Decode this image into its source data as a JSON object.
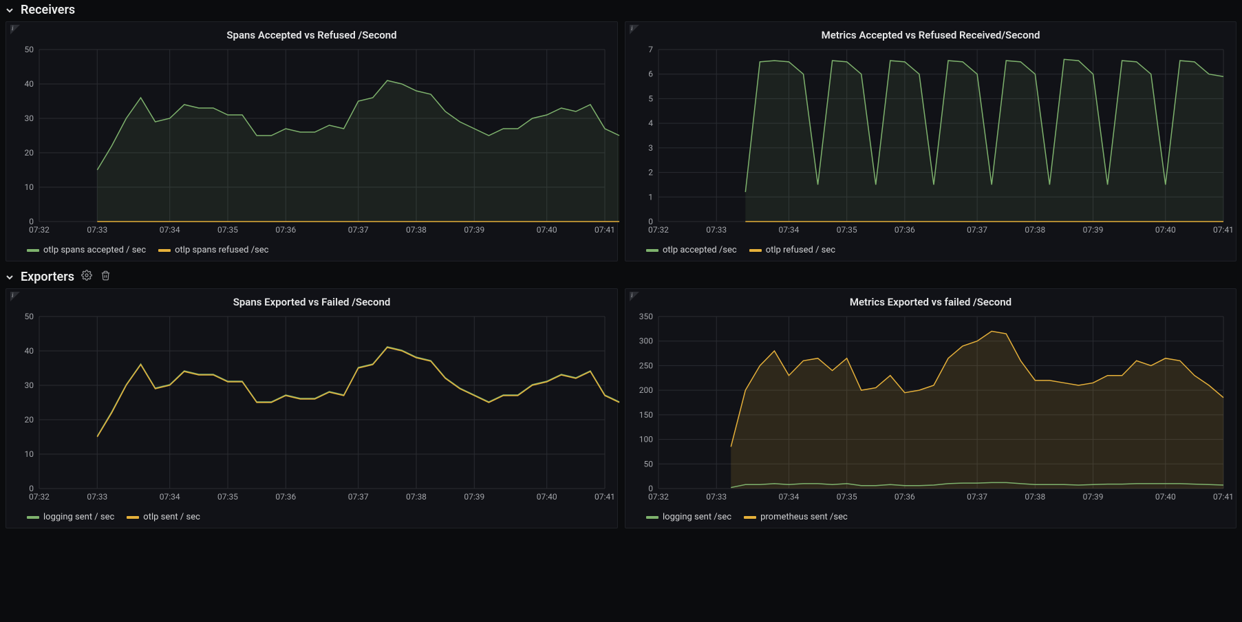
{
  "colors": {
    "green": "#7eb26d",
    "yellow": "#e5b03a",
    "grid": "#2a2c32",
    "axis": "#3a3c42",
    "tick_text": "#a3a5aa",
    "panel_bg": "#111217",
    "page_bg": "#0b0c0e"
  },
  "sections": [
    {
      "key": "receivers",
      "title": "Receivers",
      "show_icons": false
    },
    {
      "key": "exporters",
      "title": "Exporters",
      "show_icons": true
    }
  ],
  "x_ticks": [
    "07:32",
    "07:33",
    "07:34",
    "07:35",
    "07:36",
    "07:37",
    "07:38",
    "07:39",
    "07:40",
    "07:41"
  ],
  "panels": {
    "spans_accepted": {
      "title": "Spans Accepted vs Refused /Second",
      "type": "area-line",
      "x_count": 40,
      "y_min": 0,
      "y_max": 50,
      "y_step": 10,
      "legend": [
        {
          "label": "otlp spans accepted / sec",
          "color": "#7eb26d"
        },
        {
          "label": "otlp spans refused /sec",
          "color": "#e5b03a"
        }
      ],
      "series": [
        {
          "color": "#7eb26d",
          "fill": true,
          "fill_opacity": 0.1,
          "start_index": 4,
          "values": [
            15,
            22,
            30,
            36,
            29,
            30,
            34,
            33,
            33,
            31,
            31,
            25,
            25,
            27,
            26,
            26,
            28,
            27,
            35,
            36,
            41,
            40,
            38,
            37,
            32,
            29,
            27,
            25,
            27,
            27,
            30,
            31,
            33,
            32,
            34,
            27,
            25
          ]
        },
        {
          "color": "#e5b03a",
          "fill": false,
          "start_index": 4,
          "values": [
            0,
            0,
            0,
            0,
            0,
            0,
            0,
            0,
            0,
            0,
            0,
            0,
            0,
            0,
            0,
            0,
            0,
            0,
            0,
            0,
            0,
            0,
            0,
            0,
            0,
            0,
            0,
            0,
            0,
            0,
            0,
            0,
            0,
            0,
            0,
            0,
            0
          ]
        }
      ]
    },
    "metrics_accepted": {
      "title": "Metrics Accepted vs Refused Received/Second",
      "type": "area-line",
      "x_count": 40,
      "y_min": 0,
      "y_max": 7,
      "y_step": 1,
      "legend": [
        {
          "label": "otlp accepted /sec",
          "color": "#7eb26d"
        },
        {
          "label": "otlp refused / sec",
          "color": "#e5b03a"
        }
      ],
      "series": [
        {
          "color": "#7eb26d",
          "fill": true,
          "fill_opacity": 0.1,
          "start_index": 6,
          "values": [
            1.2,
            6.5,
            6.55,
            6.5,
            6.0,
            1.5,
            6.55,
            6.5,
            6.0,
            1.5,
            6.55,
            6.5,
            6.0,
            1.5,
            6.55,
            6.5,
            6.0,
            1.5,
            6.55,
            6.5,
            6.0,
            1.5,
            6.6,
            6.55,
            6.0,
            1.5,
            6.55,
            6.5,
            6.0,
            1.5,
            6.55,
            6.5,
            6.0,
            5.9
          ]
        },
        {
          "color": "#e5b03a",
          "fill": false,
          "start_index": 6,
          "values": [
            0,
            0,
            0,
            0,
            0,
            0,
            0,
            0,
            0,
            0,
            0,
            0,
            0,
            0,
            0,
            0,
            0,
            0,
            0,
            0,
            0,
            0,
            0,
            0,
            0,
            0,
            0,
            0,
            0,
            0,
            0,
            0,
            0,
            0
          ]
        }
      ]
    },
    "spans_exported": {
      "title": "Spans Exported vs Failed /Second",
      "type": "line",
      "x_count": 40,
      "y_min": 0,
      "y_max": 50,
      "y_step": 10,
      "legend": [
        {
          "label": "logging sent / sec",
          "color": "#7eb26d"
        },
        {
          "label": "otlp sent / sec",
          "color": "#e5b03a"
        }
      ],
      "series": [
        {
          "color": "#7eb26d",
          "fill": false,
          "start_index": 4,
          "values": [
            15.2,
            22.3,
            30.2,
            36.2,
            29.2,
            30.2,
            34.2,
            33.2,
            33.2,
            31.2,
            31.2,
            25.2,
            25.2,
            27.2,
            26.2,
            26.2,
            28.2,
            27.2,
            35.2,
            36.2,
            41.2,
            40.2,
            38.2,
            37.2,
            32.2,
            29.2,
            27.2,
            25.2,
            27.2,
            27.2,
            30.2,
            31.2,
            33.2,
            32.2,
            34.2,
            27.2,
            25.2
          ]
        },
        {
          "color": "#e5b03a",
          "fill": false,
          "start_index": 4,
          "values": [
            15,
            22,
            30,
            36,
            29,
            30,
            34,
            33,
            33,
            31,
            31,
            25,
            25,
            27,
            26,
            26,
            28,
            27,
            35,
            36,
            41,
            40,
            38,
            37,
            32,
            29,
            27,
            25,
            27,
            27,
            30,
            31,
            33,
            32,
            34,
            27,
            25
          ]
        }
      ]
    },
    "metrics_exported": {
      "title": "Metrics Exported vs failed /Second",
      "type": "area-line",
      "x_count": 40,
      "y_min": 0,
      "y_max": 350,
      "y_step": 50,
      "legend": [
        {
          "label": "logging sent /sec",
          "color": "#7eb26d"
        },
        {
          "label": "prometheus sent /sec",
          "color": "#e5b03a"
        }
      ],
      "series": [
        {
          "color": "#e5b03a",
          "fill": true,
          "fill_opacity": 0.14,
          "start_index": 5,
          "values": [
            85,
            200,
            250,
            280,
            230,
            260,
            265,
            240,
            265,
            200,
            205,
            230,
            195,
            200,
            210,
            265,
            290,
            300,
            320,
            315,
            260,
            220,
            220,
            215,
            210,
            215,
            230,
            230,
            260,
            250,
            265,
            260,
            230,
            210,
            185
          ]
        },
        {
          "color": "#7eb26d",
          "fill": false,
          "start_index": 5,
          "values": [
            2,
            8,
            8,
            10,
            8,
            10,
            10,
            8,
            10,
            6,
            6,
            8,
            6,
            6,
            7,
            10,
            11,
            11,
            12,
            12,
            10,
            8,
            8,
            8,
            7,
            8,
            9,
            9,
            10,
            10,
            10,
            10,
            9,
            8,
            7
          ]
        }
      ]
    }
  }
}
